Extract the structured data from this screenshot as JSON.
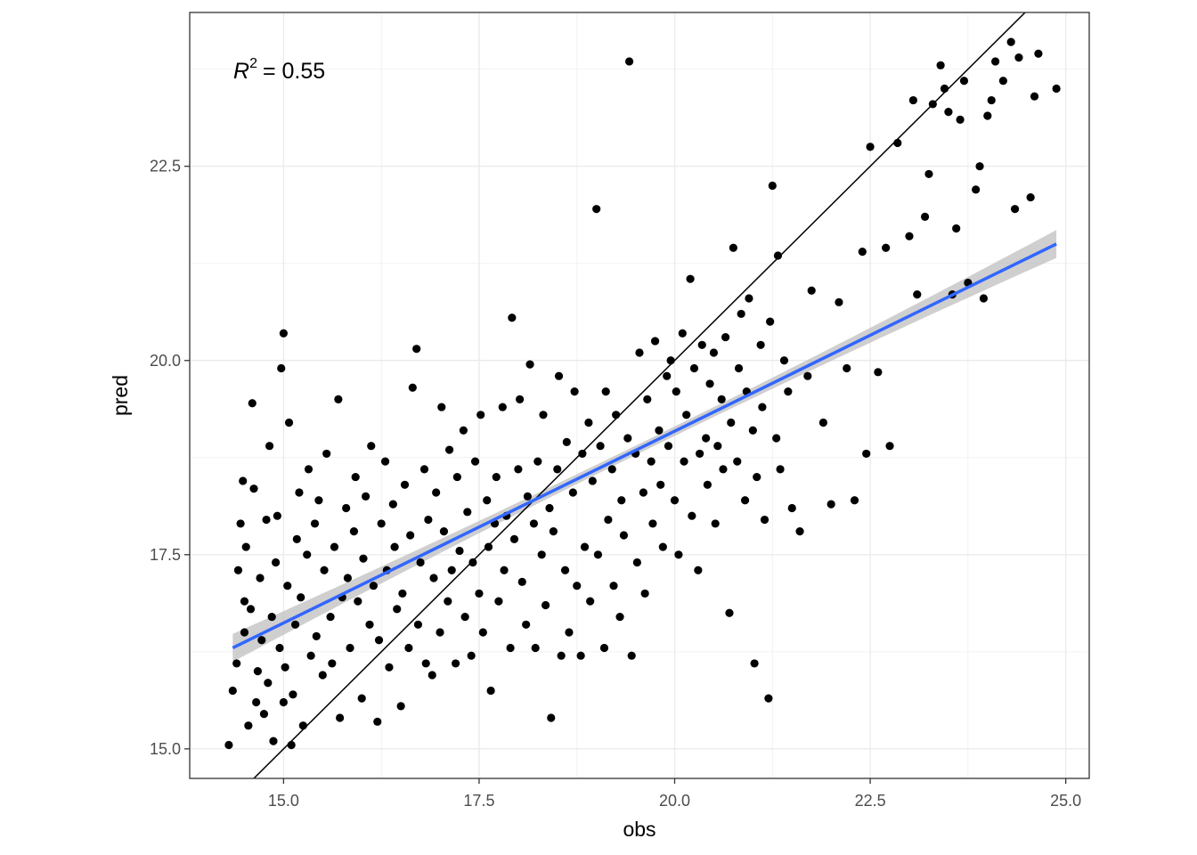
{
  "chart_data": {
    "type": "scatter",
    "title": "",
    "xlabel": "obs",
    "ylabel": "pred",
    "xlim": [
      13.8,
      25.3
    ],
    "ylim": [
      14.62,
      24.48
    ],
    "x_ticks": [
      15.0,
      17.5,
      20.0,
      22.5,
      25.0
    ],
    "x_tick_labels": [
      "15.0",
      "17.5",
      "20.0",
      "22.5",
      "25.0"
    ],
    "y_ticks": [
      15.0,
      17.5,
      20.0,
      22.5
    ],
    "y_tick_labels": [
      "15.0",
      "17.5",
      "20.0",
      "22.5"
    ],
    "grid": true,
    "annotation": {
      "r_symbol": "R",
      "superscript": "2",
      "text": "= 0.55"
    },
    "identity_line": {
      "slope": 1,
      "intercept": 0,
      "color": "#000000"
    },
    "regression": {
      "x_range": [
        14.35,
        24.88
      ],
      "y_start": 16.3,
      "y_end": 21.5,
      "color": "#3366FF",
      "ci_color": "#bfbfbf",
      "ci_halfwidth_ends": 0.18,
      "ci_halfwidth_center": 0.06
    },
    "point_color": "#000000",
    "points": [
      [
        14.3,
        15.05
      ],
      [
        14.35,
        15.75
      ],
      [
        14.4,
        16.1
      ],
      [
        14.42,
        17.3
      ],
      [
        14.45,
        17.9
      ],
      [
        14.48,
        18.45
      ],
      [
        14.5,
        16.5
      ],
      [
        14.5,
        16.9
      ],
      [
        14.52,
        17.6
      ],
      [
        14.55,
        15.3
      ],
      [
        14.58,
        16.8
      ],
      [
        14.6,
        19.45
      ],
      [
        14.62,
        18.35
      ],
      [
        14.65,
        15.6
      ],
      [
        14.67,
        16.0
      ],
      [
        14.7,
        17.2
      ],
      [
        14.72,
        16.4
      ],
      [
        14.75,
        15.45
      ],
      [
        14.78,
        17.95
      ],
      [
        14.8,
        15.85
      ],
      [
        14.82,
        18.9
      ],
      [
        14.85,
        16.7
      ],
      [
        14.87,
        15.1
      ],
      [
        14.9,
        17.4
      ],
      [
        14.92,
        18.0
      ],
      [
        14.95,
        16.3
      ],
      [
        14.97,
        19.9
      ],
      [
        15.0,
        20.35
      ],
      [
        15.0,
        15.6
      ],
      [
        15.02,
        16.05
      ],
      [
        15.05,
        17.1
      ],
      [
        15.07,
        19.2
      ],
      [
        15.1,
        15.05
      ],
      [
        15.12,
        15.7
      ],
      [
        15.15,
        16.6
      ],
      [
        15.17,
        17.7
      ],
      [
        15.2,
        18.3
      ],
      [
        15.22,
        16.95
      ],
      [
        15.25,
        15.3
      ],
      [
        15.3,
        17.5
      ],
      [
        15.32,
        18.6
      ],
      [
        15.35,
        16.2
      ],
      [
        15.4,
        17.9
      ],
      [
        15.42,
        16.45
      ],
      [
        15.45,
        18.2
      ],
      [
        15.5,
        15.95
      ],
      [
        15.52,
        17.3
      ],
      [
        15.55,
        18.8
      ],
      [
        15.6,
        16.7
      ],
      [
        15.62,
        16.1
      ],
      [
        15.65,
        17.6
      ],
      [
        15.7,
        19.5
      ],
      [
        15.72,
        15.4
      ],
      [
        15.75,
        16.95
      ],
      [
        15.8,
        18.1
      ],
      [
        15.82,
        17.2
      ],
      [
        15.85,
        16.3
      ],
      [
        15.9,
        17.8
      ],
      [
        15.92,
        18.5
      ],
      [
        15.95,
        16.9
      ],
      [
        16.0,
        15.65
      ],
      [
        16.02,
        17.45
      ],
      [
        16.05,
        18.25
      ],
      [
        16.1,
        16.6
      ],
      [
        16.12,
        18.9
      ],
      [
        16.15,
        17.1
      ],
      [
        16.2,
        15.35
      ],
      [
        16.22,
        16.4
      ],
      [
        16.25,
        17.9
      ],
      [
        16.3,
        18.7
      ],
      [
        16.32,
        17.3
      ],
      [
        16.35,
        16.05
      ],
      [
        16.4,
        18.15
      ],
      [
        16.42,
        17.6
      ],
      [
        16.45,
        16.8
      ],
      [
        16.5,
        15.55
      ],
      [
        16.52,
        17.0
      ],
      [
        16.55,
        18.4
      ],
      [
        16.6,
        16.3
      ],
      [
        16.62,
        17.75
      ],
      [
        16.65,
        19.65
      ],
      [
        16.7,
        20.15
      ],
      [
        16.72,
        16.6
      ],
      [
        16.75,
        17.4
      ],
      [
        16.8,
        18.6
      ],
      [
        16.82,
        16.1
      ],
      [
        16.85,
        17.95
      ],
      [
        16.9,
        15.95
      ],
      [
        16.92,
        17.2
      ],
      [
        16.95,
        18.3
      ],
      [
        17.0,
        16.5
      ],
      [
        17.02,
        19.4
      ],
      [
        17.05,
        17.8
      ],
      [
        17.1,
        16.9
      ],
      [
        17.12,
        18.85
      ],
      [
        17.15,
        17.3
      ],
      [
        17.2,
        16.1
      ],
      [
        17.22,
        18.5
      ],
      [
        17.25,
        17.55
      ],
      [
        17.3,
        19.1
      ],
      [
        17.32,
        16.7
      ],
      [
        17.35,
        18.05
      ],
      [
        17.4,
        16.2
      ],
      [
        17.42,
        17.4
      ],
      [
        17.45,
        18.7
      ],
      [
        17.5,
        17.0
      ],
      [
        17.52,
        19.3
      ],
      [
        17.55,
        16.5
      ],
      [
        17.6,
        18.2
      ],
      [
        17.62,
        17.6
      ],
      [
        17.65,
        15.75
      ],
      [
        17.7,
        17.9
      ],
      [
        17.72,
        18.5
      ],
      [
        17.75,
        16.9
      ],
      [
        17.8,
        19.4
      ],
      [
        17.82,
        17.3
      ],
      [
        17.85,
        18.0
      ],
      [
        17.9,
        16.3
      ],
      [
        17.92,
        20.55
      ],
      [
        17.95,
        17.7
      ],
      [
        18.0,
        18.6
      ],
      [
        18.02,
        19.5
      ],
      [
        18.05,
        17.15
      ],
      [
        18.1,
        16.6
      ],
      [
        18.12,
        18.25
      ],
      [
        18.15,
        19.95
      ],
      [
        18.2,
        17.9
      ],
      [
        18.22,
        16.3
      ],
      [
        18.25,
        18.7
      ],
      [
        18.3,
        17.5
      ],
      [
        18.32,
        19.3
      ],
      [
        18.35,
        16.85
      ],
      [
        18.4,
        18.1
      ],
      [
        18.42,
        15.4
      ],
      [
        18.45,
        17.8
      ],
      [
        18.5,
        18.6
      ],
      [
        18.52,
        19.8
      ],
      [
        18.55,
        16.2
      ],
      [
        18.6,
        17.3
      ],
      [
        18.62,
        18.95
      ],
      [
        18.65,
        16.5
      ],
      [
        18.7,
        18.3
      ],
      [
        18.72,
        19.6
      ],
      [
        18.75,
        17.1
      ],
      [
        18.8,
        16.2
      ],
      [
        18.82,
        18.8
      ],
      [
        18.85,
        17.6
      ],
      [
        18.9,
        19.2
      ],
      [
        18.92,
        16.9
      ],
      [
        18.95,
        18.45
      ],
      [
        19.0,
        21.95
      ],
      [
        19.02,
        17.5
      ],
      [
        19.05,
        18.9
      ],
      [
        19.1,
        16.3
      ],
      [
        19.12,
        19.6
      ],
      [
        19.15,
        17.95
      ],
      [
        19.2,
        18.6
      ],
      [
        19.22,
        17.1
      ],
      [
        19.25,
        19.3
      ],
      [
        19.3,
        16.7
      ],
      [
        19.32,
        18.2
      ],
      [
        19.35,
        17.75
      ],
      [
        19.4,
        19.0
      ],
      [
        19.42,
        23.85
      ],
      [
        19.45,
        16.2
      ],
      [
        19.5,
        18.8
      ],
      [
        19.52,
        17.4
      ],
      [
        19.55,
        20.1
      ],
      [
        19.6,
        18.3
      ],
      [
        19.62,
        17.0
      ],
      [
        19.65,
        19.5
      ],
      [
        19.7,
        18.7
      ],
      [
        19.72,
        17.9
      ],
      [
        19.75,
        20.25
      ],
      [
        19.8,
        19.1
      ],
      [
        19.82,
        18.4
      ],
      [
        19.85,
        17.6
      ],
      [
        19.9,
        19.8
      ],
      [
        19.92,
        18.9
      ],
      [
        19.95,
        20.0
      ],
      [
        20.0,
        18.2
      ],
      [
        20.02,
        19.6
      ],
      [
        20.05,
        17.5
      ],
      [
        20.1,
        20.35
      ],
      [
        20.12,
        18.7
      ],
      [
        20.15,
        19.3
      ],
      [
        20.2,
        21.05
      ],
      [
        20.22,
        18.0
      ],
      [
        20.25,
        19.9
      ],
      [
        20.3,
        17.3
      ],
      [
        20.32,
        18.8
      ],
      [
        20.35,
        20.2
      ],
      [
        20.4,
        19.0
      ],
      [
        20.42,
        18.4
      ],
      [
        20.45,
        19.7
      ],
      [
        20.5,
        20.1
      ],
      [
        20.52,
        17.9
      ],
      [
        20.55,
        18.9
      ],
      [
        20.6,
        19.5
      ],
      [
        20.62,
        18.6
      ],
      [
        20.65,
        20.3
      ],
      [
        20.7,
        16.75
      ],
      [
        20.72,
        19.2
      ],
      [
        20.75,
        21.45
      ],
      [
        20.8,
        18.7
      ],
      [
        20.82,
        19.9
      ],
      [
        20.85,
        20.6
      ],
      [
        20.9,
        18.2
      ],
      [
        20.92,
        19.6
      ],
      [
        20.95,
        20.8
      ],
      [
        21.0,
        19.1
      ],
      [
        21.02,
        16.1
      ],
      [
        21.05,
        18.5
      ],
      [
        21.1,
        20.2
      ],
      [
        21.12,
        19.4
      ],
      [
        21.15,
        17.95
      ],
      [
        21.2,
        15.65
      ],
      [
        21.22,
        20.5
      ],
      [
        21.25,
        22.25
      ],
      [
        21.3,
        19.0
      ],
      [
        21.32,
        21.35
      ],
      [
        21.35,
        18.6
      ],
      [
        21.4,
        20.0
      ],
      [
        21.45,
        19.6
      ],
      [
        21.5,
        18.1
      ],
      [
        21.6,
        17.8
      ],
      [
        21.7,
        19.8
      ],
      [
        21.75,
        20.9
      ],
      [
        21.9,
        19.2
      ],
      [
        22.0,
        18.15
      ],
      [
        22.1,
        20.75
      ],
      [
        22.2,
        19.9
      ],
      [
        22.3,
        18.2
      ],
      [
        22.4,
        21.4
      ],
      [
        22.45,
        18.8
      ],
      [
        22.5,
        22.75
      ],
      [
        22.6,
        19.85
      ],
      [
        22.7,
        21.45
      ],
      [
        22.75,
        18.9
      ],
      [
        22.85,
        22.8
      ],
      [
        23.0,
        21.6
      ],
      [
        23.05,
        23.35
      ],
      [
        23.1,
        20.85
      ],
      [
        23.2,
        21.85
      ],
      [
        23.25,
        22.4
      ],
      [
        23.3,
        23.3
      ],
      [
        23.4,
        23.8
      ],
      [
        23.45,
        23.5
      ],
      [
        23.5,
        23.2
      ],
      [
        23.55,
        20.85
      ],
      [
        23.6,
        21.7
      ],
      [
        23.65,
        23.1
      ],
      [
        23.7,
        23.6
      ],
      [
        23.75,
        21.0
      ],
      [
        23.85,
        22.2
      ],
      [
        23.9,
        22.5
      ],
      [
        23.95,
        20.8
      ],
      [
        24.0,
        23.15
      ],
      [
        24.05,
        23.35
      ],
      [
        24.1,
        23.85
      ],
      [
        24.2,
        23.6
      ],
      [
        24.3,
        24.1
      ],
      [
        24.35,
        21.95
      ],
      [
        24.4,
        23.9
      ],
      [
        24.55,
        22.1
      ],
      [
        24.6,
        23.4
      ],
      [
        24.65,
        23.95
      ],
      [
        24.88,
        23.5
      ]
    ]
  }
}
